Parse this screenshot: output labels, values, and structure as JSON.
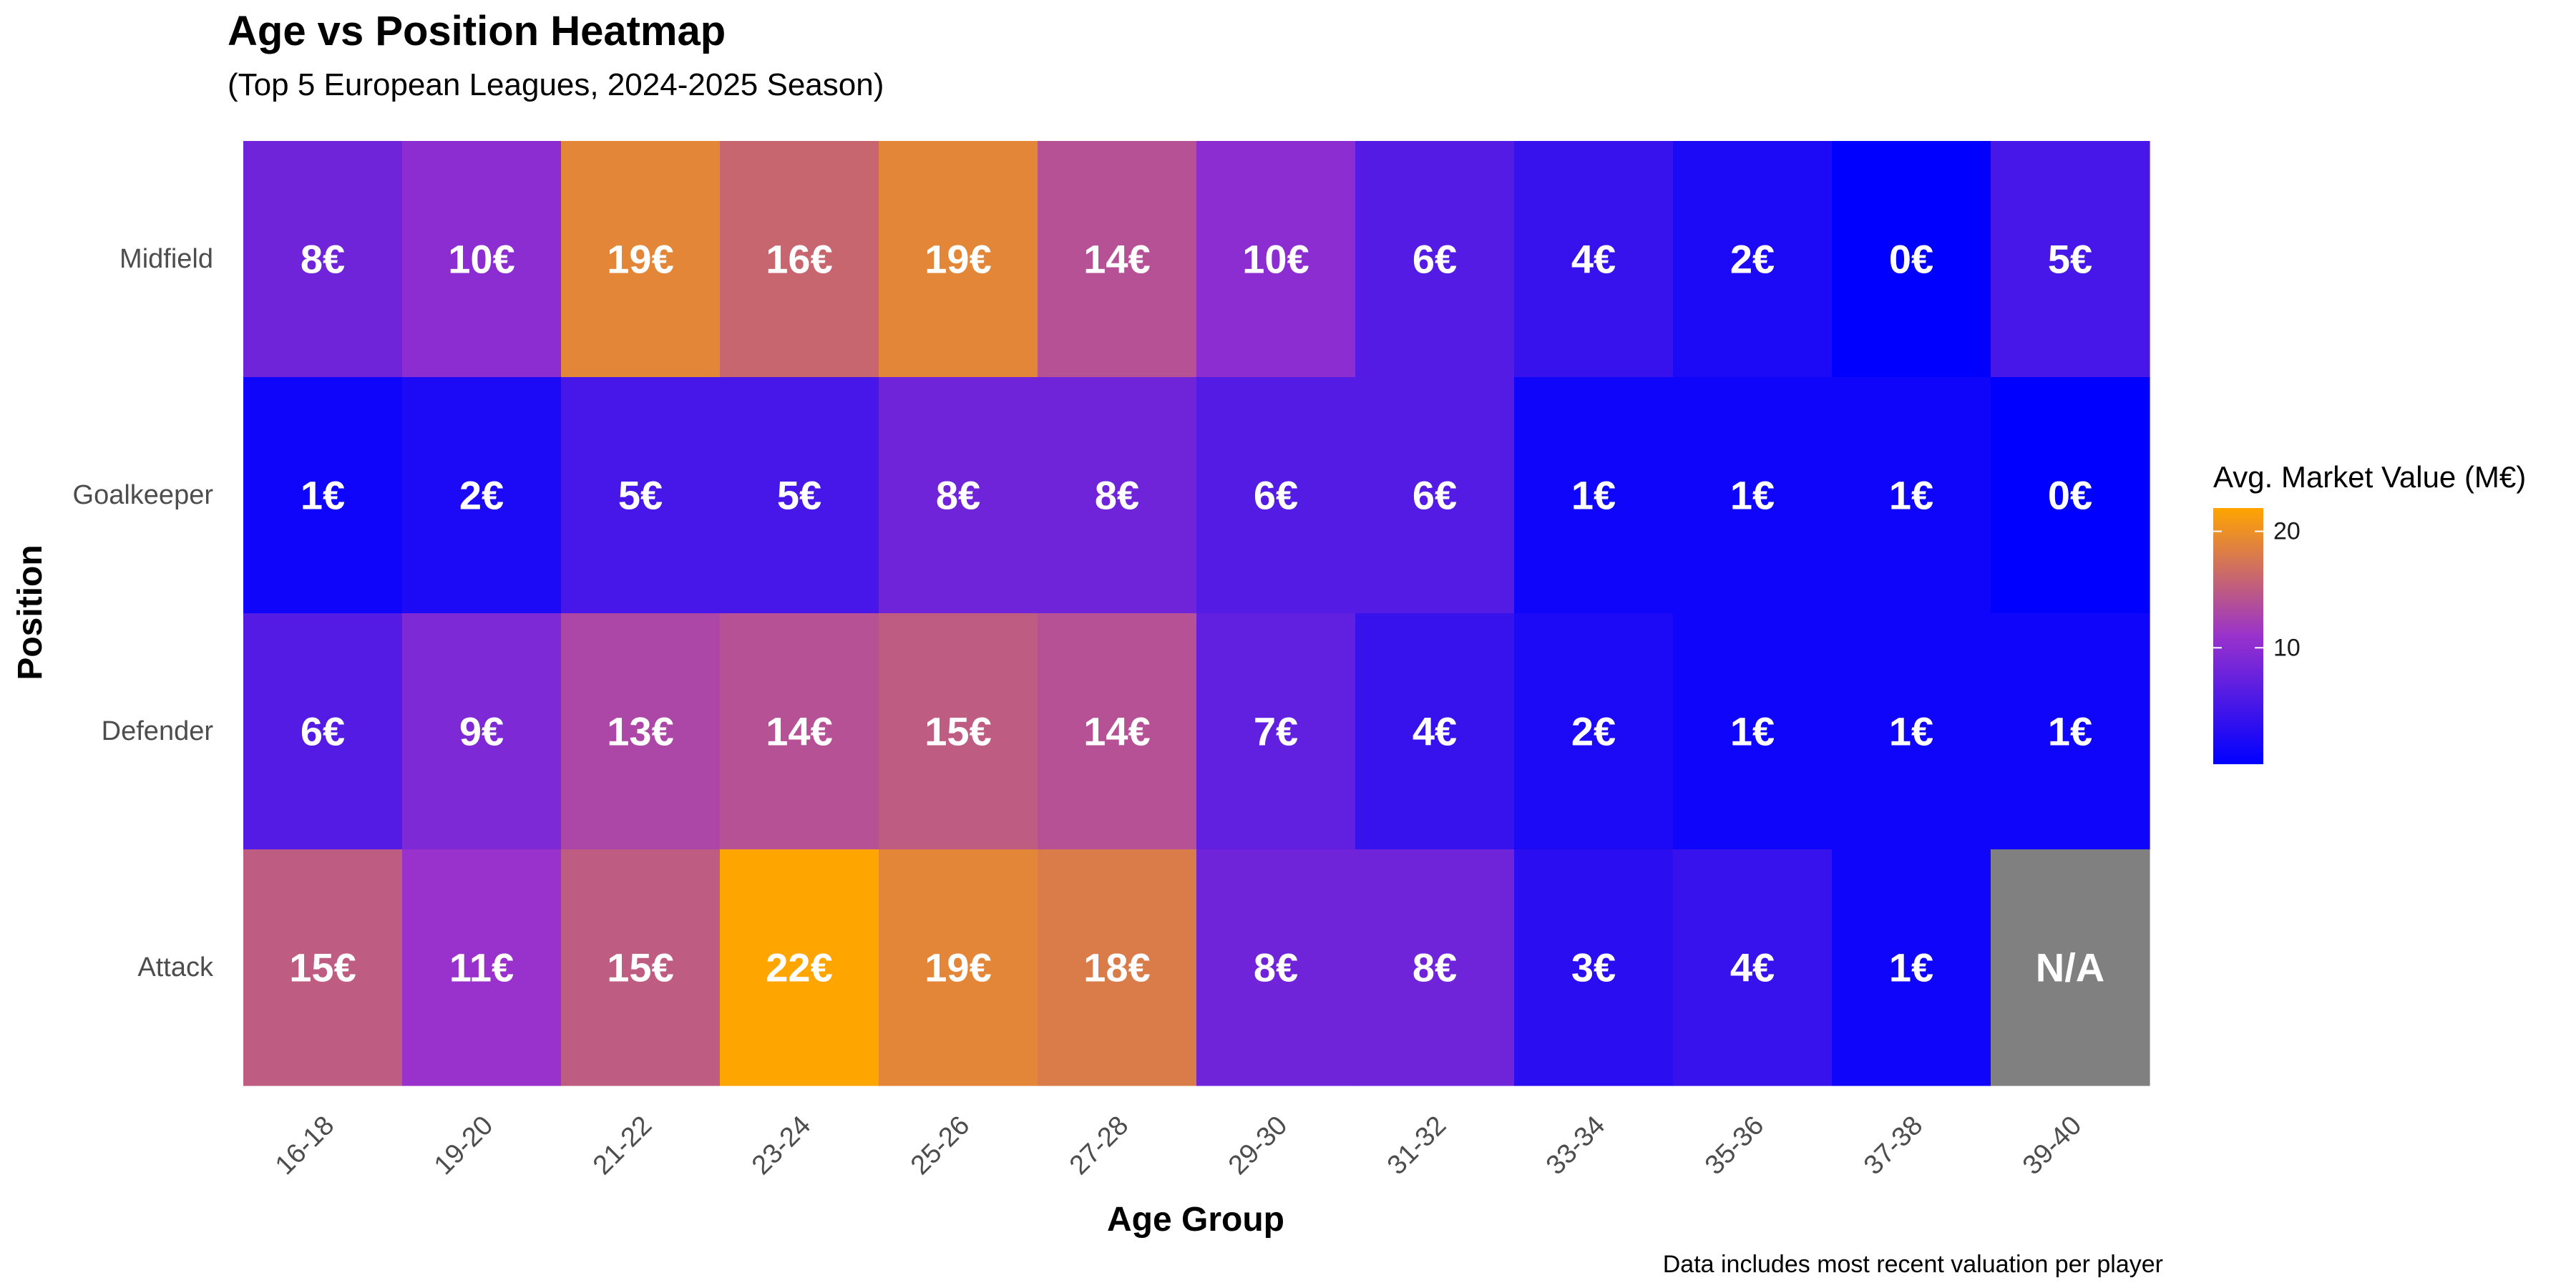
{
  "chart_data": {
    "type": "heatmap",
    "title": "Age vs Position Heatmap",
    "subtitle": "(Top 5 European Leagues, 2024-2025 Season)",
    "xlabel": "Age Group",
    "ylabel": "Position",
    "caption": "Data includes most recent valuation per player",
    "x_categories": [
      "16-18",
      "19-20",
      "21-22",
      "23-24",
      "25-26",
      "27-28",
      "29-30",
      "31-32",
      "33-34",
      "35-36",
      "37-38",
      "39-40"
    ],
    "y_categories": [
      "Midfield",
      "Goalkeeper",
      "Defender",
      "Attack"
    ],
    "values": [
      [
        8,
        10,
        19,
        16,
        19,
        14,
        10,
        6,
        4,
        2,
        0,
        5
      ],
      [
        1,
        2,
        5,
        5,
        8,
        8,
        6,
        6,
        1,
        1,
        1,
        0
      ],
      [
        6,
        9,
        13,
        14,
        15,
        14,
        7,
        4,
        2,
        1,
        1,
        1
      ],
      [
        15,
        11,
        15,
        22,
        19,
        18,
        8,
        8,
        3,
        4,
        1,
        null
      ]
    ],
    "value_suffix": "€",
    "missing_label": "N/A",
    "colorscale": {
      "low": "#0000ff",
      "mid": "#9932cc",
      "high": "#ffa500",
      "missing": "#808080",
      "min": 0,
      "max": 22
    },
    "legend": {
      "title": "Avg. Market Value (M€)",
      "ticks": [
        10,
        20
      ],
      "position": "right"
    },
    "grid": false
  }
}
